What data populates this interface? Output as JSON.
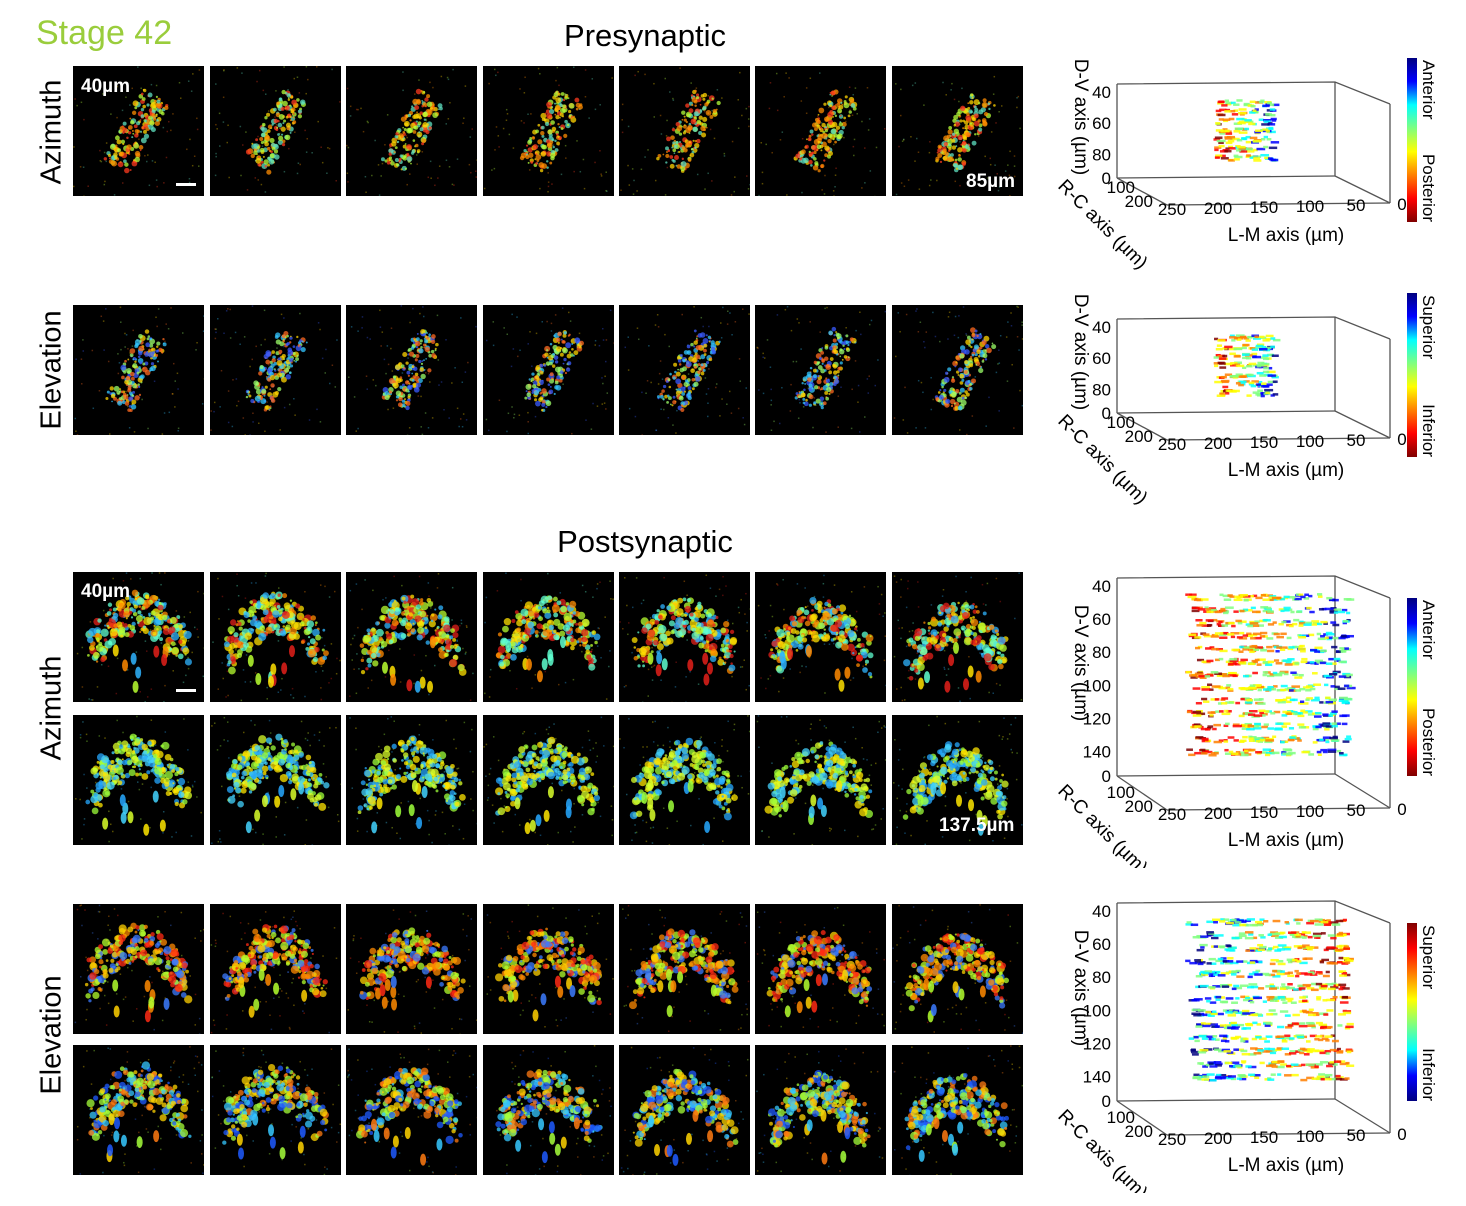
{
  "stage_label": "Stage 42",
  "presynaptic": {
    "title": "Presynaptic",
    "rows": [
      {
        "label": "Azimuth",
        "start_depth": "40µm",
        "end_depth": "85µm"
      },
      {
        "label": "Elevation"
      }
    ]
  },
  "postsynaptic": {
    "title": "Postsynaptic",
    "rows": [
      {
        "label": "Azimuth",
        "start_depth": "40µm",
        "end_depth": "137.5µm"
      },
      {
        "label": "Elevation"
      }
    ]
  },
  "plots": [
    {
      "z_label": "D-V axis (µm)",
      "y_label": "R-C axis (µm)",
      "x_label": "L-M axis (µm)",
      "z_ticks": [
        "40",
        "60",
        "80",
        "0"
      ],
      "y_ticks": [
        "100",
        "200"
      ],
      "x_ticks": [
        "250",
        "200",
        "150",
        "100",
        "50",
        "0"
      ],
      "colorbar_top": "Anterior",
      "colorbar_bottom": "Posterior"
    },
    {
      "z_label": "D-V axis (µm)",
      "y_label": "R-C axis (µm)",
      "x_label": "L-M axis (µm)",
      "z_ticks": [
        "40",
        "60",
        "80",
        "0"
      ],
      "y_ticks": [
        "100",
        "200"
      ],
      "x_ticks": [
        "250",
        "200",
        "150",
        "100",
        "50",
        "0"
      ],
      "colorbar_top": "Superior",
      "colorbar_bottom": "Inferior"
    },
    {
      "z_label": "D-V axis (µm)",
      "y_label": "R-C axis (µm)",
      "x_label": "L-M axis (µm)",
      "z_ticks": [
        "40",
        "60",
        "80",
        "100",
        "120",
        "140",
        "0"
      ],
      "y_ticks": [
        "100",
        "200"
      ],
      "x_ticks": [
        "250",
        "200",
        "150",
        "100",
        "50",
        "0"
      ],
      "colorbar_top": "Anterior",
      "colorbar_bottom": "Posterior"
    },
    {
      "z_label": "D-V axis (µm)",
      "y_label": "R-C axis (µm)",
      "x_label": "L-M axis (µm)",
      "z_ticks": [
        "40",
        "60",
        "80",
        "100",
        "120",
        "140",
        "0"
      ],
      "y_ticks": [
        "100",
        "200"
      ],
      "x_ticks": [
        "250",
        "200",
        "150",
        "100",
        "50",
        "0"
      ],
      "colorbar_top": "Superior",
      "colorbar_bottom": "Inferior"
    }
  ],
  "colors": {
    "stage": "#9ACD3C",
    "jet": [
      "#00007f",
      "#0000ff",
      "#00ffff",
      "#7fff7f",
      "#ffff00",
      "#ff7f00",
      "#ff0000",
      "#7f0000"
    ]
  }
}
